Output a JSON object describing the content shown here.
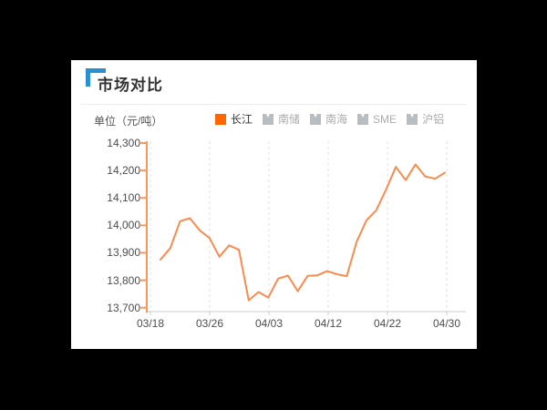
{
  "card": {
    "title": "市场对比",
    "unit_label": "单位（元/吨）"
  },
  "legend": {
    "items": [
      {
        "label": "长江",
        "active": true
      },
      {
        "label": "南储",
        "active": false
      },
      {
        "label": "南海",
        "active": false
      },
      {
        "label": "SME",
        "active": false
      },
      {
        "label": "沪铝",
        "active": false
      }
    ]
  },
  "colors": {
    "accent_orange": "#ff6600",
    "line_orange": "#f98b4e",
    "axis_orange": "#f99659",
    "inactive_gray": "#b8bdc2",
    "grid_gray": "#e2e2e2",
    "xaxis_gray": "#cccccc",
    "title_blue": "#2b90d0"
  },
  "chart_data": {
    "type": "line",
    "title": "市场对比",
    "ylabel": "元/吨",
    "series": [
      {
        "name": "长江",
        "color": "#f98b4e",
        "values": [
          13875,
          13917,
          14015,
          14026,
          13982,
          13954,
          13886,
          13927,
          13911,
          13727,
          13757,
          13737,
          13806,
          13817,
          13760,
          13816,
          13818,
          13833,
          13822,
          13815,
          13940,
          14018,
          14055,
          14130,
          14213,
          14165,
          14222,
          14178,
          14170,
          14192
        ]
      }
    ],
    "x_tick_labels": [
      "03/18",
      "03/26",
      "04/03",
      "04/12",
      "04/22",
      "04/30"
    ],
    "y_tick_labels": [
      "14,300",
      "14,200",
      "14,100",
      "14,000",
      "13,900",
      "13,800",
      "13,700"
    ],
    "y_tick_values": [
      14300,
      14200,
      14100,
      14000,
      13900,
      13800,
      13700
    ],
    "ylim": [
      13700,
      14300
    ],
    "grid": "dashed-vertical",
    "legend_position": "top"
  }
}
